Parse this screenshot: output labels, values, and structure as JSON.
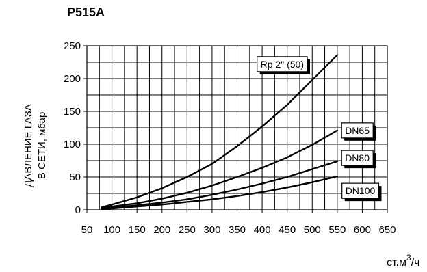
{
  "chart_data": {
    "type": "line",
    "title": "P515A",
    "ylabel_lines": [
      "ДАВЛЕНИЕ ГАЗА",
      "В СЕТИ, мбар"
    ],
    "xlabel": {
      "base": "ст.м",
      "sup": "3",
      "tail": "/ч"
    },
    "x_ticks": [
      50,
      100,
      150,
      200,
      250,
      300,
      350,
      400,
      450,
      500,
      550,
      600,
      650
    ],
    "y_ticks": [
      0,
      50,
      100,
      150,
      200,
      250
    ],
    "xlim": [
      50,
      650
    ],
    "ylim": [
      0,
      250
    ],
    "grid": true,
    "legend": "direct labels on series",
    "series": [
      {
        "name": "Rp 2\" (50)",
        "x": [
          80,
          100,
          150,
          200,
          250,
          300,
          350,
          400,
          450,
          500,
          550
        ],
        "y": [
          4,
          8,
          19,
          33,
          50,
          70,
          97,
          127,
          160,
          198,
          236
        ]
      },
      {
        "name": "DN65",
        "x": [
          80,
          100,
          150,
          200,
          250,
          300,
          350,
          400,
          450,
          500,
          550
        ],
        "y": [
          3,
          5,
          10,
          17,
          26,
          37,
          50,
          64,
          80,
          99,
          121
        ]
      },
      {
        "name": "DN80",
        "x": [
          80,
          100,
          150,
          200,
          250,
          300,
          350,
          400,
          450,
          500,
          550
        ],
        "y": [
          2,
          3,
          7,
          11,
          16,
          23,
          31,
          40,
          50,
          62,
          74
        ]
      },
      {
        "name": "DN100",
        "x": [
          80,
          100,
          150,
          200,
          250,
          300,
          350,
          400,
          450,
          500,
          550
        ],
        "y": [
          1,
          2,
          5,
          8,
          12,
          16,
          21,
          27,
          34,
          42,
          51
        ]
      }
    ]
  }
}
